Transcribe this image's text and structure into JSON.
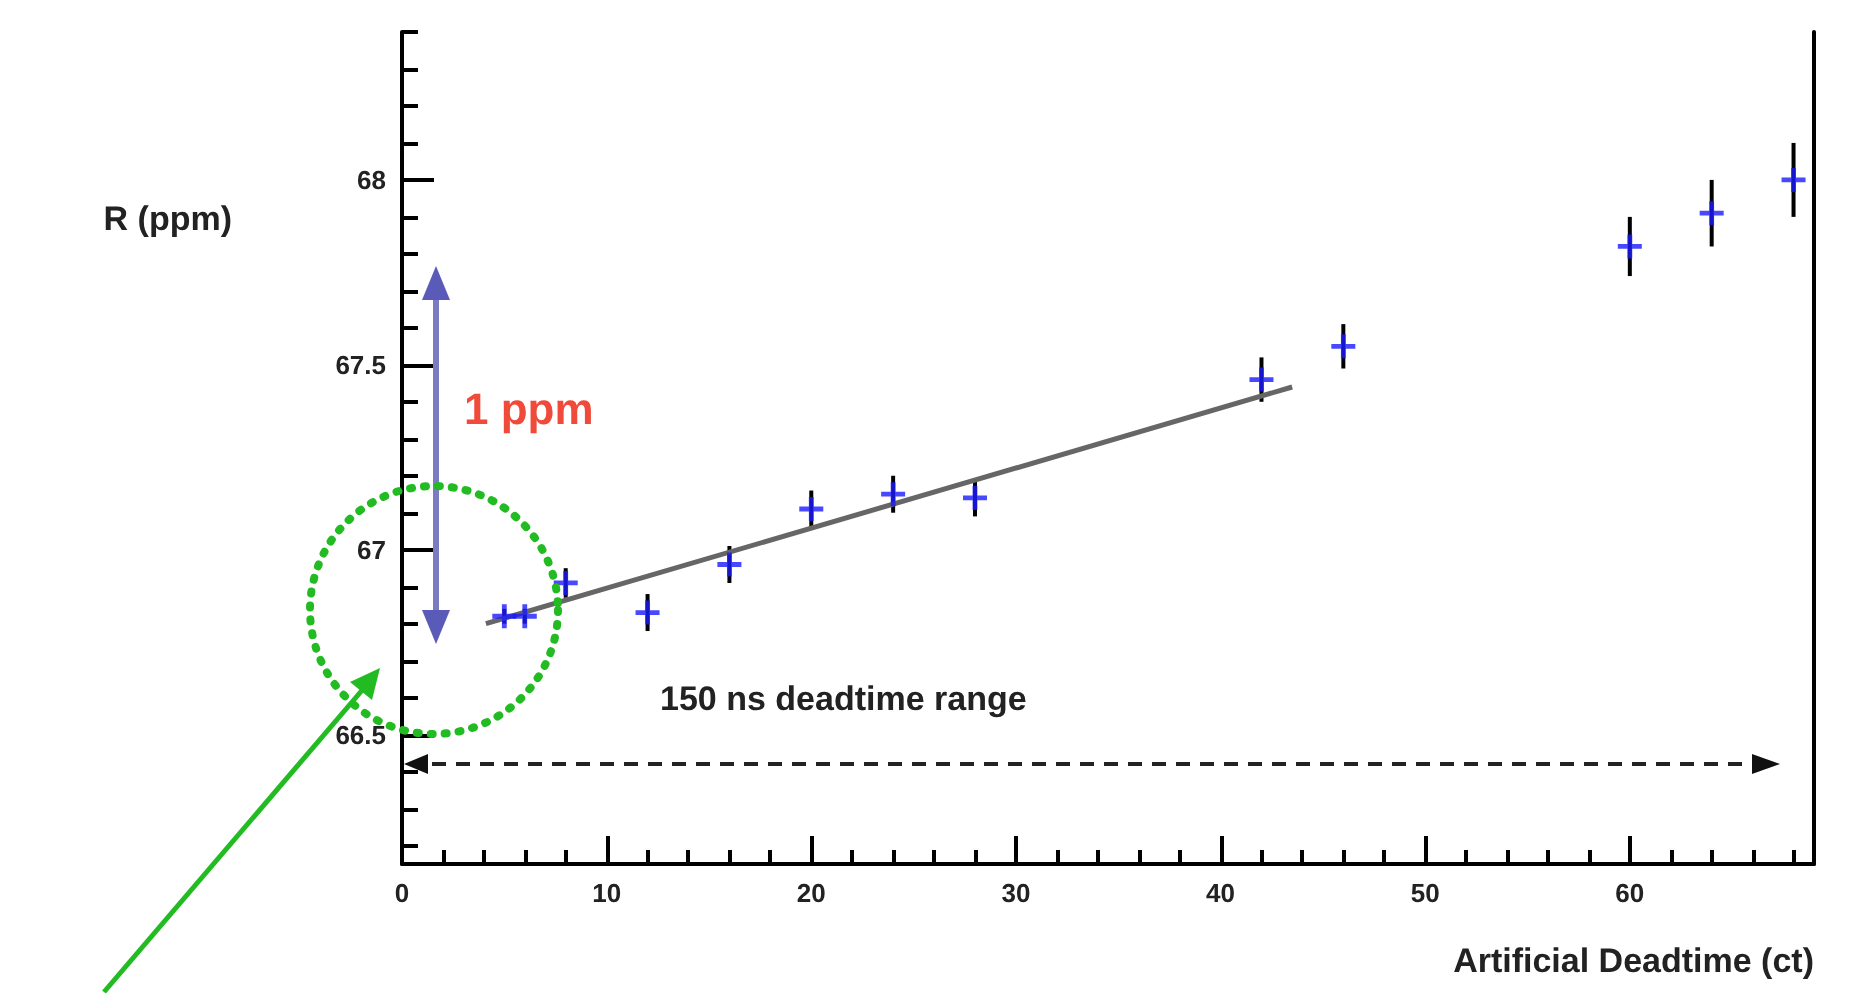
{
  "chart_data": {
    "type": "scatter",
    "xlabel": "Artificial Deadtime (ct)",
    "ylabel": "R (ppm)",
    "xlim": [
      0,
      69
    ],
    "xticks": [
      0,
      10,
      20,
      30,
      40,
      50,
      60
    ],
    "ylim": [
      66.15,
      68.4
    ],
    "yticks": [
      66.5,
      67,
      67.5,
      68
    ],
    "grid": false,
    "annotations": [
      "1 ppm",
      "150 ns deadtime range"
    ],
    "series": [
      {
        "color": "#1a1aff",
        "marker": "cross",
        "x": [
          5,
          6,
          8,
          12,
          16,
          20,
          24,
          28,
          42,
          46,
          60,
          64,
          68
        ],
        "values": [
          66.82,
          66.82,
          66.91,
          66.83,
          66.96,
          67.11,
          67.15,
          67.14,
          67.46,
          67.55,
          67.82,
          67.91,
          68.0
        ],
        "errors": [
          0.02,
          0.02,
          0.04,
          0.05,
          0.05,
          0.05,
          0.05,
          0.05,
          0.06,
          0.06,
          0.08,
          0.09,
          0.1
        ]
      },
      {
        "type": "line",
        "color": "#666666",
        "x": [
          4.1,
          43.5
        ],
        "values": [
          66.8,
          67.44
        ]
      }
    ]
  }
}
